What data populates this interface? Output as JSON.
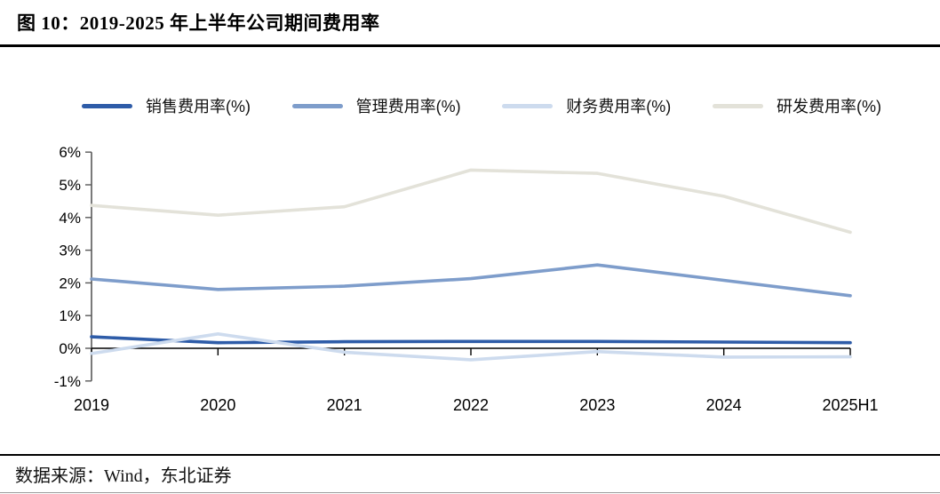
{
  "figure": {
    "title": "图  10：2019-2025 年上半年公司期间费用率",
    "source": "数据来源：Wind，东北证券"
  },
  "chart_data": {
    "type": "line",
    "title": "2019-2025 年上半年公司期间费用率",
    "categories": [
      "2019",
      "2020",
      "2021",
      "2022",
      "2023",
      "2024",
      "2025H1"
    ],
    "series": [
      {
        "name": "销售费用率(%)",
        "color": "#2E5CA8",
        "values": [
          0.35,
          0.17,
          0.2,
          0.21,
          0.21,
          0.19,
          0.17
        ]
      },
      {
        "name": "管理费用率(%)",
        "color": "#7E9DCB",
        "values": [
          2.12,
          1.8,
          1.9,
          2.13,
          2.55,
          2.08,
          1.61
        ]
      },
      {
        "name": "财务费用率(%)",
        "color": "#CDDBEE",
        "values": [
          -0.16,
          0.44,
          -0.12,
          -0.35,
          -0.1,
          -0.27,
          -0.26
        ]
      },
      {
        "name": "研发费用率(%)",
        "color": "#E3E2D9",
        "values": [
          4.37,
          4.07,
          4.33,
          5.45,
          5.35,
          4.65,
          3.55
        ]
      }
    ],
    "xlabel": "",
    "ylabel": "",
    "ylim": [
      -1,
      6
    ],
    "y_tick_labels": [
      "6%",
      "5%",
      "4%",
      "3%",
      "2%",
      "1%",
      "0%",
      "-1%"
    ],
    "grid": false,
    "legend_position": "top",
    "axis_colors": {
      "y_axis": "#595959",
      "x_axis": "#000000"
    }
  }
}
